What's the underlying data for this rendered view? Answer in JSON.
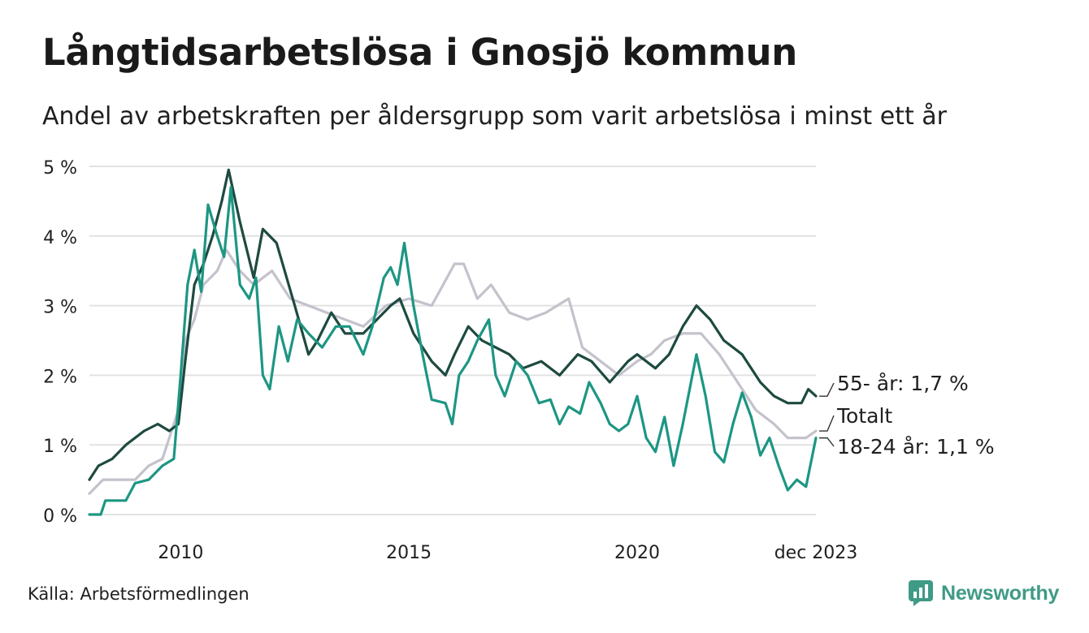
{
  "title": "Långtidsarbetslösa i Gnosjö kommun",
  "subtitle": "Andel av arbetskraften per åldersgrupp som varit arbetslösa i minst ett år",
  "source": "Källa: Arbetsförmedlingen",
  "brand": "Newsworthy",
  "colors": {
    "s55": "#1e4a40",
    "total": "#c4c2cc",
    "s1824": "#1d9683",
    "grid": "#e2e2e2",
    "brand": "#3f9a86"
  },
  "chart_data": {
    "type": "line",
    "title": "Långtidsarbetslösa i Gnosjö kommun",
    "xlabel": "",
    "ylabel": "",
    "xlim": [
      2008.0,
      2023.917
    ],
    "ylim": [
      0,
      5
    ],
    "y_ticks": [
      {
        "value": 0,
        "label": "0 %"
      },
      {
        "value": 1,
        "label": "1 %"
      },
      {
        "value": 2,
        "label": "2 %"
      },
      {
        "value": 3,
        "label": "3 %"
      },
      {
        "value": 4,
        "label": "4 %"
      },
      {
        "value": 5,
        "label": "5 %"
      }
    ],
    "x_ticks": [
      {
        "value": 2010.0,
        "label": "2010"
      },
      {
        "value": 2015.0,
        "label": "2015"
      },
      {
        "value": 2020.0,
        "label": "2020"
      },
      {
        "value": 2023.917,
        "label": "dec 2023"
      }
    ],
    "series": [
      {
        "name": "Totalt",
        "end_label": "Totalt",
        "color_key": "total",
        "points": [
          [
            2008.0,
            0.3
          ],
          [
            2008.3,
            0.5
          ],
          [
            2009.0,
            0.5
          ],
          [
            2009.3,
            0.7
          ],
          [
            2009.6,
            0.8
          ],
          [
            2009.95,
            1.5
          ],
          [
            2010.1,
            2.5
          ],
          [
            2010.3,
            2.8
          ],
          [
            2010.5,
            3.3
          ],
          [
            2010.8,
            3.5
          ],
          [
            2011.0,
            3.8
          ],
          [
            2011.3,
            3.5
          ],
          [
            2011.6,
            3.3
          ],
          [
            2012.0,
            3.5
          ],
          [
            2012.4,
            3.1
          ],
          [
            2012.8,
            3.0
          ],
          [
            2013.2,
            2.9
          ],
          [
            2013.6,
            2.8
          ],
          [
            2014.0,
            2.7
          ],
          [
            2014.5,
            3.0
          ],
          [
            2015.0,
            3.1
          ],
          [
            2015.5,
            3.0
          ],
          [
            2016.0,
            3.6
          ],
          [
            2016.2,
            3.6
          ],
          [
            2016.5,
            3.1
          ],
          [
            2016.8,
            3.3
          ],
          [
            2017.2,
            2.9
          ],
          [
            2017.6,
            2.8
          ],
          [
            2018.0,
            2.9
          ],
          [
            2018.5,
            3.1
          ],
          [
            2018.8,
            2.4
          ],
          [
            2019.2,
            2.2
          ],
          [
            2019.6,
            2.0
          ],
          [
            2020.0,
            2.2
          ],
          [
            2020.3,
            2.3
          ],
          [
            2020.6,
            2.5
          ],
          [
            2021.0,
            2.6
          ],
          [
            2021.4,
            2.6
          ],
          [
            2021.8,
            2.3
          ],
          [
            2022.2,
            1.9
          ],
          [
            2022.6,
            1.5
          ],
          [
            2023.0,
            1.3
          ],
          [
            2023.3,
            1.1
          ],
          [
            2023.7,
            1.1
          ],
          [
            2023.917,
            1.2
          ]
        ]
      },
      {
        "name": "55- år",
        "end_label": "55- år: 1,7 %",
        "color_key": "s55",
        "points": [
          [
            2008.0,
            0.5
          ],
          [
            2008.2,
            0.7
          ],
          [
            2008.5,
            0.8
          ],
          [
            2008.8,
            1.0
          ],
          [
            2009.2,
            1.2
          ],
          [
            2009.5,
            1.3
          ],
          [
            2009.75,
            1.2
          ],
          [
            2009.95,
            1.3
          ],
          [
            2010.1,
            2.2
          ],
          [
            2010.3,
            3.3
          ],
          [
            2010.5,
            3.6
          ],
          [
            2010.7,
            4.0
          ],
          [
            2010.9,
            4.5
          ],
          [
            2011.05,
            4.95
          ],
          [
            2011.3,
            4.2
          ],
          [
            2011.6,
            3.4
          ],
          [
            2011.8,
            4.1
          ],
          [
            2012.1,
            3.9
          ],
          [
            2012.5,
            3.0
          ],
          [
            2012.8,
            2.3
          ],
          [
            2013.0,
            2.5
          ],
          [
            2013.3,
            2.9
          ],
          [
            2013.6,
            2.6
          ],
          [
            2014.0,
            2.6
          ],
          [
            2014.3,
            2.8
          ],
          [
            2014.6,
            3.0
          ],
          [
            2014.8,
            3.1
          ],
          [
            2015.1,
            2.6
          ],
          [
            2015.5,
            2.2
          ],
          [
            2015.8,
            2.0
          ],
          [
            2016.0,
            2.3
          ],
          [
            2016.3,
            2.7
          ],
          [
            2016.6,
            2.5
          ],
          [
            2016.9,
            2.4
          ],
          [
            2017.2,
            2.3
          ],
          [
            2017.5,
            2.1
          ],
          [
            2017.9,
            2.2
          ],
          [
            2018.3,
            2.0
          ],
          [
            2018.7,
            2.3
          ],
          [
            2019.0,
            2.2
          ],
          [
            2019.4,
            1.9
          ],
          [
            2019.8,
            2.2
          ],
          [
            2020.0,
            2.3
          ],
          [
            2020.4,
            2.1
          ],
          [
            2020.7,
            2.3
          ],
          [
            2021.0,
            2.7
          ],
          [
            2021.3,
            3.0
          ],
          [
            2021.6,
            2.8
          ],
          [
            2021.9,
            2.5
          ],
          [
            2022.3,
            2.3
          ],
          [
            2022.7,
            1.9
          ],
          [
            2023.0,
            1.7
          ],
          [
            2023.3,
            1.6
          ],
          [
            2023.6,
            1.6
          ],
          [
            2023.75,
            1.8
          ],
          [
            2023.917,
            1.7
          ]
        ]
      },
      {
        "name": "18-24 år",
        "end_label": "18-24 år: 1,1 %",
        "color_key": "s1824",
        "points": [
          [
            2008.0,
            0.0
          ],
          [
            2008.25,
            0.0
          ],
          [
            2008.35,
            0.2
          ],
          [
            2008.8,
            0.2
          ],
          [
            2009.0,
            0.45
          ],
          [
            2009.3,
            0.5
          ],
          [
            2009.6,
            0.7
          ],
          [
            2009.85,
            0.8
          ],
          [
            2010.0,
            2.0
          ],
          [
            2010.15,
            3.3
          ],
          [
            2010.3,
            3.8
          ],
          [
            2010.45,
            3.2
          ],
          [
            2010.6,
            4.45
          ],
          [
            2010.8,
            4.0
          ],
          [
            2010.95,
            3.7
          ],
          [
            2011.1,
            4.7
          ],
          [
            2011.3,
            3.3
          ],
          [
            2011.5,
            3.1
          ],
          [
            2011.65,
            3.4
          ],
          [
            2011.8,
            2.0
          ],
          [
            2011.95,
            1.8
          ],
          [
            2012.15,
            2.7
          ],
          [
            2012.35,
            2.2
          ],
          [
            2012.55,
            2.8
          ],
          [
            2012.8,
            2.6
          ],
          [
            2013.1,
            2.4
          ],
          [
            2013.4,
            2.7
          ],
          [
            2013.7,
            2.7
          ],
          [
            2014.0,
            2.3
          ],
          [
            2014.2,
            2.7
          ],
          [
            2014.45,
            3.4
          ],
          [
            2014.6,
            3.55
          ],
          [
            2014.75,
            3.3
          ],
          [
            2014.9,
            3.9
          ],
          [
            2015.1,
            3.0
          ],
          [
            2015.3,
            2.3
          ],
          [
            2015.5,
            1.65
          ],
          [
            2015.8,
            1.6
          ],
          [
            2015.95,
            1.3
          ],
          [
            2016.1,
            2.0
          ],
          [
            2016.3,
            2.2
          ],
          [
            2016.5,
            2.5
          ],
          [
            2016.75,
            2.8
          ],
          [
            2016.9,
            2.0
          ],
          [
            2017.1,
            1.7
          ],
          [
            2017.35,
            2.2
          ],
          [
            2017.6,
            2.0
          ],
          [
            2017.85,
            1.6
          ],
          [
            2018.1,
            1.65
          ],
          [
            2018.3,
            1.3
          ],
          [
            2018.5,
            1.55
          ],
          [
            2018.75,
            1.45
          ],
          [
            2018.95,
            1.9
          ],
          [
            2019.2,
            1.6
          ],
          [
            2019.4,
            1.3
          ],
          [
            2019.6,
            1.2
          ],
          [
            2019.8,
            1.3
          ],
          [
            2020.0,
            1.7
          ],
          [
            2020.2,
            1.1
          ],
          [
            2020.4,
            0.9
          ],
          [
            2020.6,
            1.4
          ],
          [
            2020.8,
            0.7
          ],
          [
            2021.0,
            1.3
          ],
          [
            2021.15,
            1.8
          ],
          [
            2021.3,
            2.3
          ],
          [
            2021.5,
            1.7
          ],
          [
            2021.7,
            0.9
          ],
          [
            2021.9,
            0.75
          ],
          [
            2022.1,
            1.3
          ],
          [
            2022.3,
            1.75
          ],
          [
            2022.5,
            1.4
          ],
          [
            2022.7,
            0.85
          ],
          [
            2022.9,
            1.1
          ],
          [
            2023.1,
            0.7
          ],
          [
            2023.3,
            0.35
          ],
          [
            2023.5,
            0.5
          ],
          [
            2023.7,
            0.4
          ],
          [
            2023.917,
            1.1
          ]
        ]
      }
    ]
  }
}
